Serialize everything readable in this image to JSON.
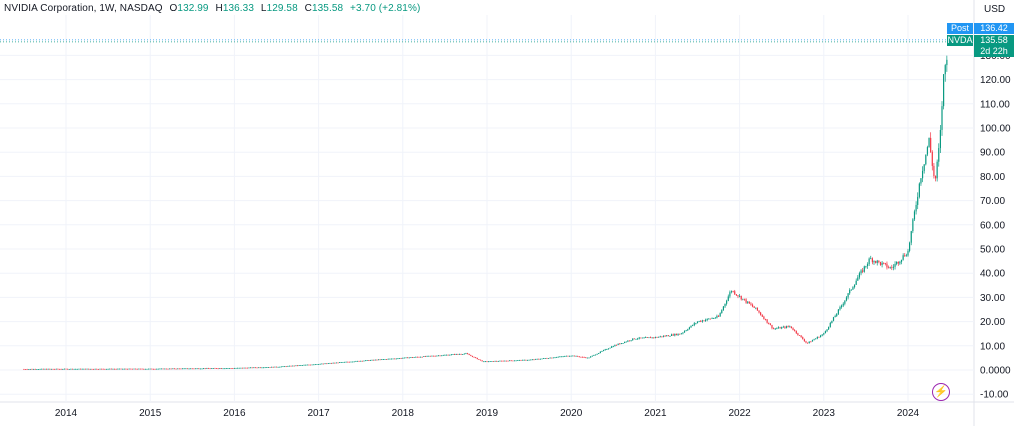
{
  "legend": {
    "symbol": "NVIDIA Corporation, 1W, NASDAQ",
    "open_label": "O",
    "open": "132.99",
    "high_label": "H",
    "high": "136.33",
    "low_label": "L",
    "low": "129.58",
    "close_label": "C",
    "close": "135.58",
    "change": "+3.70 (+2.81%)"
  },
  "currency": "USD",
  "badges": {
    "post_label": "Post",
    "post_value": "136.42",
    "ticker_label": "NVDA",
    "ticker_value": "135.58",
    "countdown": "2d 22h"
  },
  "colors": {
    "up": "#089981",
    "down": "#f23645",
    "post": "#2196f3",
    "grid": "#f0f3fa",
    "axis": "#131722"
  },
  "icons": {
    "flash": "lightning-icon"
  },
  "chart_data": {
    "type": "candlestick",
    "interval": "1W",
    "ylim": [
      -10,
      140
    ],
    "yticks": [
      "-10.00",
      "0.0000",
      "10.00",
      "20.00",
      "30.00",
      "40.00",
      "50.00",
      "60.00",
      "70.00",
      "80.00",
      "90.00",
      "100.00",
      "110.00",
      "120.00",
      "130.00"
    ],
    "xticks": [
      "2014",
      "2015",
      "2016",
      "2017",
      "2018",
      "2019",
      "2020",
      "2021",
      "2022",
      "2023",
      "2024"
    ],
    "price_points": [
      {
        "t": 2013.5,
        "v": 0.4
      },
      {
        "t": 2014.0,
        "v": 0.45
      },
      {
        "t": 2015.0,
        "v": 0.5
      },
      {
        "t": 2016.0,
        "v": 0.8
      },
      {
        "t": 2016.5,
        "v": 1.3
      },
      {
        "t": 2017.0,
        "v": 2.5
      },
      {
        "t": 2017.5,
        "v": 3.8
      },
      {
        "t": 2018.0,
        "v": 5.0
      },
      {
        "t": 2018.75,
        "v": 6.8
      },
      {
        "t": 2018.95,
        "v": 3.5
      },
      {
        "t": 2019.5,
        "v": 4.2
      },
      {
        "t": 2020.0,
        "v": 6.0
      },
      {
        "t": 2020.2,
        "v": 5.0
      },
      {
        "t": 2020.5,
        "v": 10.0
      },
      {
        "t": 2020.75,
        "v": 13.0
      },
      {
        "t": 2021.0,
        "v": 13.5
      },
      {
        "t": 2021.3,
        "v": 15.0
      },
      {
        "t": 2021.5,
        "v": 20.0
      },
      {
        "t": 2021.75,
        "v": 22.0
      },
      {
        "t": 2021.9,
        "v": 33.0
      },
      {
        "t": 2022.2,
        "v": 25.0
      },
      {
        "t": 2022.4,
        "v": 17.0
      },
      {
        "t": 2022.6,
        "v": 18.0
      },
      {
        "t": 2022.8,
        "v": 11.0
      },
      {
        "t": 2023.0,
        "v": 15.0
      },
      {
        "t": 2023.2,
        "v": 26.0
      },
      {
        "t": 2023.4,
        "v": 38.0
      },
      {
        "t": 2023.55,
        "v": 46.0
      },
      {
        "t": 2023.8,
        "v": 42.0
      },
      {
        "t": 2024.0,
        "v": 49.0
      },
      {
        "t": 2024.15,
        "v": 80.0
      },
      {
        "t": 2024.25,
        "v": 95.0
      },
      {
        "t": 2024.32,
        "v": 77.0
      },
      {
        "t": 2024.38,
        "v": 95.0
      },
      {
        "t": 2024.42,
        "v": 120.0
      },
      {
        "t": 2024.48,
        "v": 135.58
      }
    ],
    "last_close": 135.58,
    "post_price": 136.42
  }
}
